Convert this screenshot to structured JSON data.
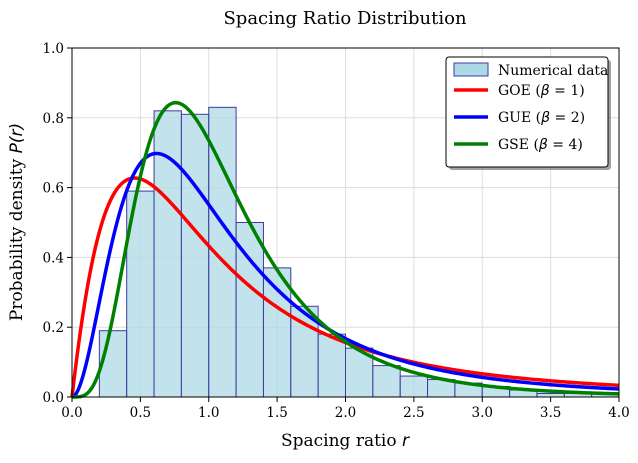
{
  "chart_data": {
    "type": "bar+line",
    "title": "Spacing Ratio Distribution",
    "xlabel": "Spacing ratio",
    "xlabel_symbol": "r",
    "ylabel": "Probability density",
    "ylabel_symbol": "P(r)",
    "xlim": [
      0,
      4
    ],
    "ylim": [
      0,
      1
    ],
    "xticks": [
      "0.0",
      "0.5",
      "1.0",
      "1.5",
      "2.0",
      "2.5",
      "3.0",
      "3.5",
      "4.0"
    ],
    "yticks": [
      "0.0",
      "0.2",
      "0.4",
      "0.6",
      "0.8",
      "1.0"
    ],
    "grid": true,
    "legend_position": "top-right",
    "histogram": {
      "name": "Numerical data",
      "bin_width": 0.2,
      "bin_starts": [
        0.0,
        0.2,
        0.4,
        0.6,
        0.8,
        1.0,
        1.2,
        1.4,
        1.6,
        1.8,
        2.0,
        2.2,
        2.4,
        2.6,
        2.8,
        3.0,
        3.2,
        3.4,
        3.6,
        3.8
      ],
      "values": [
        0.0,
        0.19,
        0.59,
        0.82,
        0.81,
        0.83,
        0.5,
        0.37,
        0.26,
        0.18,
        0.14,
        0.09,
        0.06,
        0.05,
        0.04,
        0.03,
        0.02,
        0.01,
        0.01,
        0.01
      ],
      "fill": "#add8e6",
      "edge": "#3b3ba0"
    },
    "series": [
      {
        "name": "GOE",
        "beta": 1,
        "color": "#ff0000"
      },
      {
        "name": "GUE",
        "beta": 2,
        "color": "#0000ff"
      },
      {
        "name": "GSE",
        "beta": 4,
        "color": "#008000"
      }
    ],
    "beta_symbol": "β"
  }
}
